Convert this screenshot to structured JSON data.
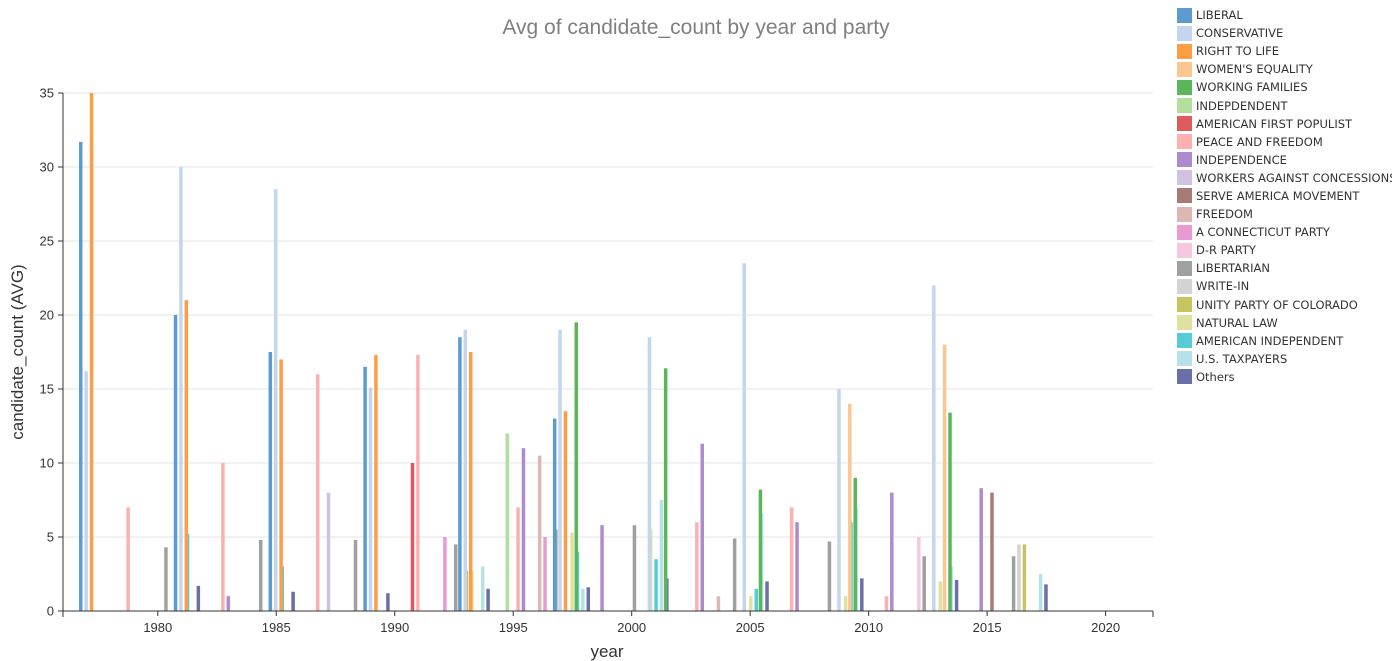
{
  "chart_data": {
    "type": "bar",
    "title": "Avg of candidate_count by year and party",
    "xlabel": "year",
    "ylabel": "candidate_count (AVG)",
    "ylim": [
      0,
      35
    ],
    "yticks": [
      0,
      5,
      10,
      15,
      20,
      25,
      30,
      35
    ],
    "xlim": [
      1976,
      2022
    ],
    "xticks": [
      1980,
      1985,
      1990,
      1995,
      2000,
      2005,
      2010,
      2015,
      2020
    ],
    "grid": true,
    "legend_position": "right",
    "parties": [
      {
        "name": "LIBERAL",
        "color": "#5b9bd0"
      },
      {
        "name": "CONSERVATIVE",
        "color": "#c3d6ee"
      },
      {
        "name": "RIGHT TO LIFE",
        "color": "#fd9d45"
      },
      {
        "name": "WOMEN'S EQUALITY",
        "color": "#fdc58f"
      },
      {
        "name": "WORKING FAMILIES",
        "color": "#5bb55b"
      },
      {
        "name": "INDEPDENDENT",
        "color": "#b2df9e"
      },
      {
        "name": "AMERICAN FIRST POPULIST",
        "color": "#dd5b5b"
      },
      {
        "name": "PEACE AND FREEDOM",
        "color": "#fdb0b0"
      },
      {
        "name": "INDEPENDENCE",
        "color": "#ad8bcd"
      },
      {
        "name": "WORKERS AGAINST CONCESSIONS",
        "color": "#d1c2e2"
      },
      {
        "name": "SERVE AMERICA MOVEMENT",
        "color": "#a77b74"
      },
      {
        "name": "FREEDOM",
        "color": "#dbb8b2"
      },
      {
        "name": "A CONNECTICUT PARTY",
        "color": "#e99ad2"
      },
      {
        "name": "D-R PARTY",
        "color": "#f6c7de"
      },
      {
        "name": "LIBERTARIAN",
        "color": "#a0a0a0"
      },
      {
        "name": "WRITE-IN",
        "color": "#d3d3d3"
      },
      {
        "name": "UNITY PARTY OF COLORADO",
        "color": "#c6c45e"
      },
      {
        "name": "NATURAL LAW",
        "color": "#e0e0a0"
      },
      {
        "name": "AMERICAN INDEPENDENT",
        "color": "#55ccd8"
      },
      {
        "name": "U.S. TAXPAYERS",
        "color": "#b4e2e8"
      },
      {
        "name": "Others",
        "color": "#6b6fa5"
      }
    ],
    "bars": [
      {
        "year": 1976,
        "party": "LIBERAL",
        "value": 31.7
      },
      {
        "year": 1976,
        "party": "CONSERVATIVE",
        "value": 16.2
      },
      {
        "year": 1976,
        "party": "RIGHT TO LIFE",
        "value": 35
      },
      {
        "year": 1978,
        "party": "PEACE AND FREEDOM",
        "value": 7
      },
      {
        "year": 1978,
        "party": "LIBERTARIAN",
        "value": 4.3
      },
      {
        "year": 1978,
        "party": "AMERICAN INDEPENDENT",
        "value": 5.2
      },
      {
        "year": 1978,
        "party": "Others",
        "value": 1.7
      },
      {
        "year": 1980,
        "party": "LIBERAL",
        "value": 20
      },
      {
        "year": 1980,
        "party": "CONSERVATIVE",
        "value": 30
      },
      {
        "year": 1980,
        "party": "RIGHT TO LIFE",
        "value": 21
      },
      {
        "year": 1982,
        "party": "PEACE AND FREEDOM",
        "value": 10
      },
      {
        "year": 1982,
        "party": "INDEPENDENCE",
        "value": 1
      },
      {
        "year": 1982,
        "party": "LIBERTARIAN",
        "value": 4.8
      },
      {
        "year": 1982,
        "party": "AMERICAN INDEPENDENT",
        "value": 3
      },
      {
        "year": 1982,
        "party": "Others",
        "value": 1.3
      },
      {
        "year": 1984,
        "party": "LIBERAL",
        "value": 17.5
      },
      {
        "year": 1984,
        "party": "CONSERVATIVE",
        "value": 28.5
      },
      {
        "year": 1984,
        "party": "RIGHT TO LIFE",
        "value": 17
      },
      {
        "year": 1986,
        "party": "PEACE AND FREEDOM",
        "value": 16
      },
      {
        "year": 1986,
        "party": "WORKERS AGAINST CONCESSIONS",
        "value": 8
      },
      {
        "year": 1986,
        "party": "LIBERTARIAN",
        "value": 4.8
      },
      {
        "year": 1986,
        "party": "Others",
        "value": 1.2
      },
      {
        "year": 1988,
        "party": "LIBERAL",
        "value": 16.5
      },
      {
        "year": 1988,
        "party": "CONSERVATIVE",
        "value": 15.1
      },
      {
        "year": 1988,
        "party": "RIGHT TO LIFE",
        "value": 17.3
      },
      {
        "year": 1990,
        "party": "AMERICAN FIRST POPULIST",
        "value": 10
      },
      {
        "year": 1990,
        "party": "PEACE AND FREEDOM",
        "value": 17.3
      },
      {
        "year": 1990,
        "party": "A CONNECTICUT PARTY",
        "value": 5
      },
      {
        "year": 1990,
        "party": "LIBERTARIAN",
        "value": 4.5
      },
      {
        "year": 1990,
        "party": "NATURAL LAW",
        "value": 2.7
      },
      {
        "year": 1990,
        "party": "UNITY PARTY OF COLORADO",
        "value": 2.7
      },
      {
        "year": 1990,
        "party": "U.S. TAXPAYERS",
        "value": 3
      },
      {
        "year": 1990,
        "party": "Others",
        "value": 1.5
      },
      {
        "year": 1992,
        "party": "LIBERAL",
        "value": 18.5
      },
      {
        "year": 1992,
        "party": "CONSERVATIVE",
        "value": 19
      },
      {
        "year": 1992,
        "party": "RIGHT TO LIFE",
        "value": 17.5
      },
      {
        "year": 1994,
        "party": "INDEPDENDENT",
        "value": 12
      },
      {
        "year": 1994,
        "party": "PEACE AND FREEDOM",
        "value": 7
      },
      {
        "year": 1994,
        "party": "INDEPENDENCE",
        "value": 11
      },
      {
        "year": 1994,
        "party": "FREEDOM",
        "value": 10.5
      },
      {
        "year": 1994,
        "party": "A CONNECTICUT PARTY",
        "value": 5
      },
      {
        "year": 1994,
        "party": "LIBERTARIAN",
        "value": 5.5
      },
      {
        "year": 1994,
        "party": "NATURAL LAW",
        "value": 5.3
      },
      {
        "year": 1994,
        "party": "AMERICAN INDEPENDENT",
        "value": 4
      },
      {
        "year": 1994,
        "party": "U.S. TAXPAYERS",
        "value": 1.5
      },
      {
        "year": 1994,
        "party": "Others",
        "value": 1.6
      },
      {
        "year": 1996,
        "party": "LIBERAL",
        "value": 13
      },
      {
        "year": 1996,
        "party": "CONSERVATIVE",
        "value": 19
      },
      {
        "year": 1996,
        "party": "RIGHT TO LIFE",
        "value": 13.5
      },
      {
        "year": 1996,
        "party": "WORKING FAMILIES",
        "value": 19.5
      },
      {
        "year": 1998,
        "party": "INDEPENDENCE",
        "value": 5.8
      },
      {
        "year": 1998,
        "party": "LIBERTARIAN",
        "value": 5.8
      },
      {
        "year": 1998,
        "party": "NATURAL LAW",
        "value": 5.5
      },
      {
        "year": 1998,
        "party": "U.S. TAXPAYERS",
        "value": 7.5
      },
      {
        "year": 1998,
        "party": "AMERICAN INDEPENDENT",
        "value": 3.5
      },
      {
        "year": 1998,
        "party": "Others",
        "value": 2.2
      },
      {
        "year": 2000,
        "party": "CONSERVATIVE",
        "value": 18.5
      },
      {
        "year": 2000,
        "party": "WORKING FAMILIES",
        "value": 16.4
      },
      {
        "year": 2002,
        "party": "PEACE AND FREEDOM",
        "value": 6
      },
      {
        "year": 2002,
        "party": "INDEPENDENCE",
        "value": 11.3
      },
      {
        "year": 2002,
        "party": "FREEDOM",
        "value": 1
      },
      {
        "year": 2002,
        "party": "LIBERTARIAN",
        "value": 4.9
      },
      {
        "year": 2002,
        "party": "NATURAL LAW",
        "value": 1
      },
      {
        "year": 2002,
        "party": "AMERICAN INDEPENDENT",
        "value": 1.5
      },
      {
        "year": 2002,
        "party": "U.S. TAXPAYERS",
        "value": 6.6
      },
      {
        "year": 2002,
        "party": "Others",
        "value": 2
      },
      {
        "year": 2004,
        "party": "CONSERVATIVE",
        "value": 23.5
      },
      {
        "year": 2004,
        "party": "WORKING FAMILIES",
        "value": 8.2
      },
      {
        "year": 2006,
        "party": "PEACE AND FREEDOM",
        "value": 7
      },
      {
        "year": 2006,
        "party": "INDEPENDENCE",
        "value": 6
      },
      {
        "year": 2006,
        "party": "LIBERTARIAN",
        "value": 4.7
      },
      {
        "year": 2006,
        "party": "NATURAL LAW",
        "value": 1
      },
      {
        "year": 2006,
        "party": "AMERICAN INDEPENDENT",
        "value": 6
      },
      {
        "year": 2006,
        "party": "U.S. TAXPAYERS",
        "value": 7
      },
      {
        "year": 2006,
        "party": "Others",
        "value": 2.2
      },
      {
        "year": 2008,
        "party": "CONSERVATIVE",
        "value": 15
      },
      {
        "year": 2008,
        "party": "WOMEN'S EQUALITY",
        "value": 14
      },
      {
        "year": 2008,
        "party": "WORKING FAMILIES",
        "value": 9
      },
      {
        "year": 2010,
        "party": "PEACE AND FREEDOM",
        "value": 1
      },
      {
        "year": 2010,
        "party": "INDEPENDENCE",
        "value": 8
      },
      {
        "year": 2010,
        "party": "D-R PARTY",
        "value": 5
      },
      {
        "year": 2010,
        "party": "LIBERTARIAN",
        "value": 3.7
      },
      {
        "year": 2010,
        "party": "NATURAL LAW",
        "value": 2
      },
      {
        "year": 2010,
        "party": "U.S. TAXPAYERS",
        "value": 3
      },
      {
        "year": 2010,
        "party": "Others",
        "value": 2.1
      },
      {
        "year": 2012,
        "party": "CONSERVATIVE",
        "value": 22
      },
      {
        "year": 2012,
        "party": "WOMEN'S EQUALITY",
        "value": 18
      },
      {
        "year": 2012,
        "party": "WORKING FAMILIES",
        "value": 13.4
      },
      {
        "year": 2014,
        "party": "INDEPENDENCE",
        "value": 8.3
      },
      {
        "year": 2014,
        "party": "SERVE AMERICA MOVEMENT",
        "value": 8
      },
      {
        "year": 2014,
        "party": "LIBERTARIAN",
        "value": 3.7
      },
      {
        "year": 2014,
        "party": "WRITE-IN",
        "value": 4.5
      },
      {
        "year": 2014,
        "party": "UNITY PARTY OF COLORADO",
        "value": 4.5
      },
      {
        "year": 2014,
        "party": "U.S. TAXPAYERS",
        "value": 2.5
      },
      {
        "year": 2014,
        "party": "Others",
        "value": 1.8
      }
    ]
  }
}
